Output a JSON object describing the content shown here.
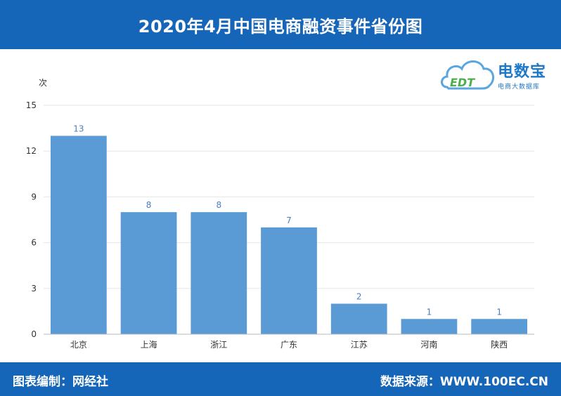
{
  "header": {
    "title": "2020年4月中国电商融资事件省份图"
  },
  "logo": {
    "brand": "电数宝",
    "sub": "电商大数据库",
    "mark": "EDT"
  },
  "footer": {
    "left": "图表编制：网经社",
    "right": "数据来源：WWW.100EC.CN"
  },
  "colors": {
    "bar": "#5b9bd5",
    "header": "#1565b8",
    "label": "#4a7fc0"
  },
  "chart_data": {
    "type": "bar",
    "categories": [
      "北京",
      "上海",
      "浙江",
      "广东",
      "江苏",
      "河南",
      "陕西"
    ],
    "values": [
      13,
      8,
      8,
      7,
      2,
      1,
      1
    ],
    "title": "2020年4月中国电商融资事件省份图",
    "xlabel": "",
    "ylabel": "次",
    "ylim": [
      0,
      15
    ],
    "yticks": [
      0,
      3,
      6,
      9,
      12,
      15
    ],
    "grid": true,
    "legend": "none"
  }
}
